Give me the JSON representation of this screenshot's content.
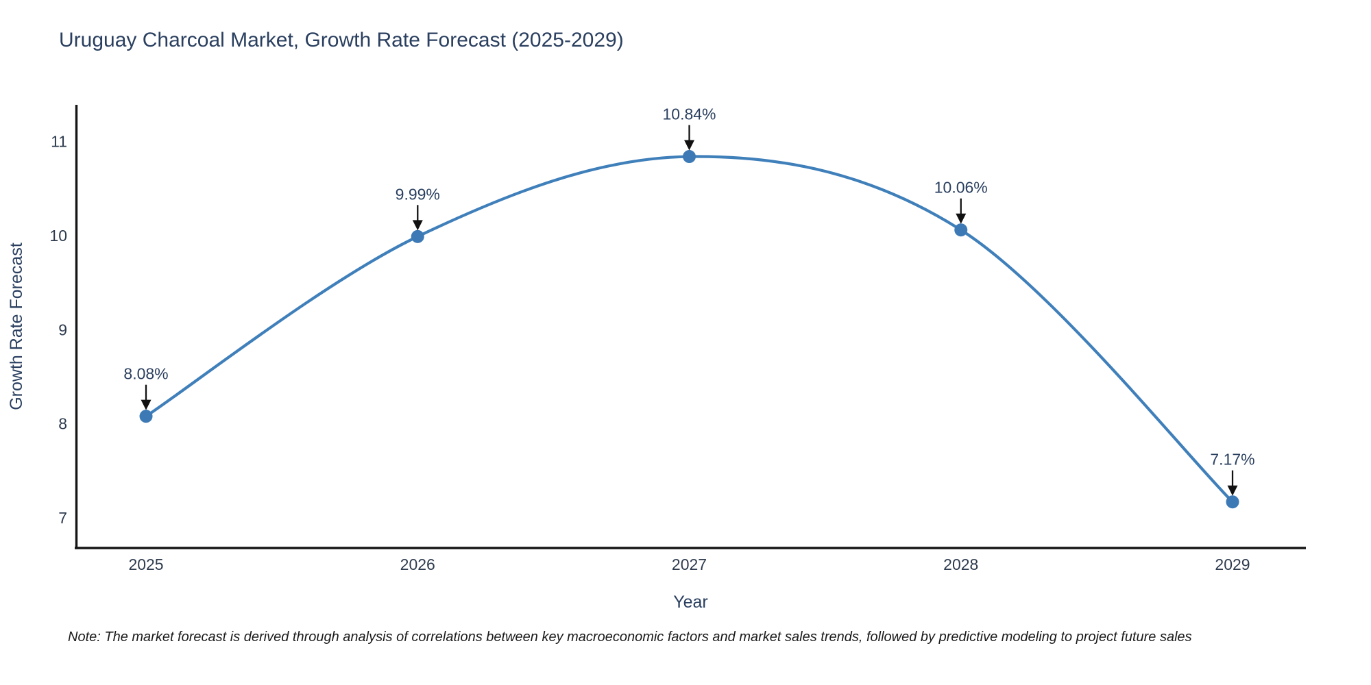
{
  "title": "Uruguay Charcoal Market, Growth Rate Forecast (2025-2029)",
  "note": "Note: The market forecast is derived through analysis of correlations between key macroeconomic factors and market sales trends, followed by predictive modeling to project future sales",
  "chart_data": {
    "type": "line",
    "title": "Uruguay Charcoal Market, Growth Rate Forecast (2025-2029)",
    "xlabel": "Year",
    "ylabel": "Growth Rate Forecast",
    "x": [
      2025,
      2026,
      2027,
      2028,
      2029
    ],
    "values": [
      8.08,
      9.99,
      10.84,
      10.06,
      7.17
    ],
    "point_labels": [
      "8.08%",
      "9.99%",
      "10.84%",
      "10.06%",
      "7.17%"
    ],
    "xticks": [
      "2025",
      "2026",
      "2027",
      "2028",
      "2029"
    ],
    "yticks": [
      7,
      8,
      9,
      10,
      11
    ],
    "xlim": [
      2024.74,
      2029.27
    ],
    "ylim": [
      6.68,
      11.39
    ],
    "line_shape": "spline",
    "grid": false,
    "legend": "none",
    "colors": {
      "line": "#3f7fba",
      "marker": "#3d7ab5",
      "axis": "#151515",
      "tick_text": "#2e3b4e",
      "annotation_text": "#2a3f5f",
      "arrow": "#111111",
      "title_text": "#2a3f5f"
    }
  }
}
